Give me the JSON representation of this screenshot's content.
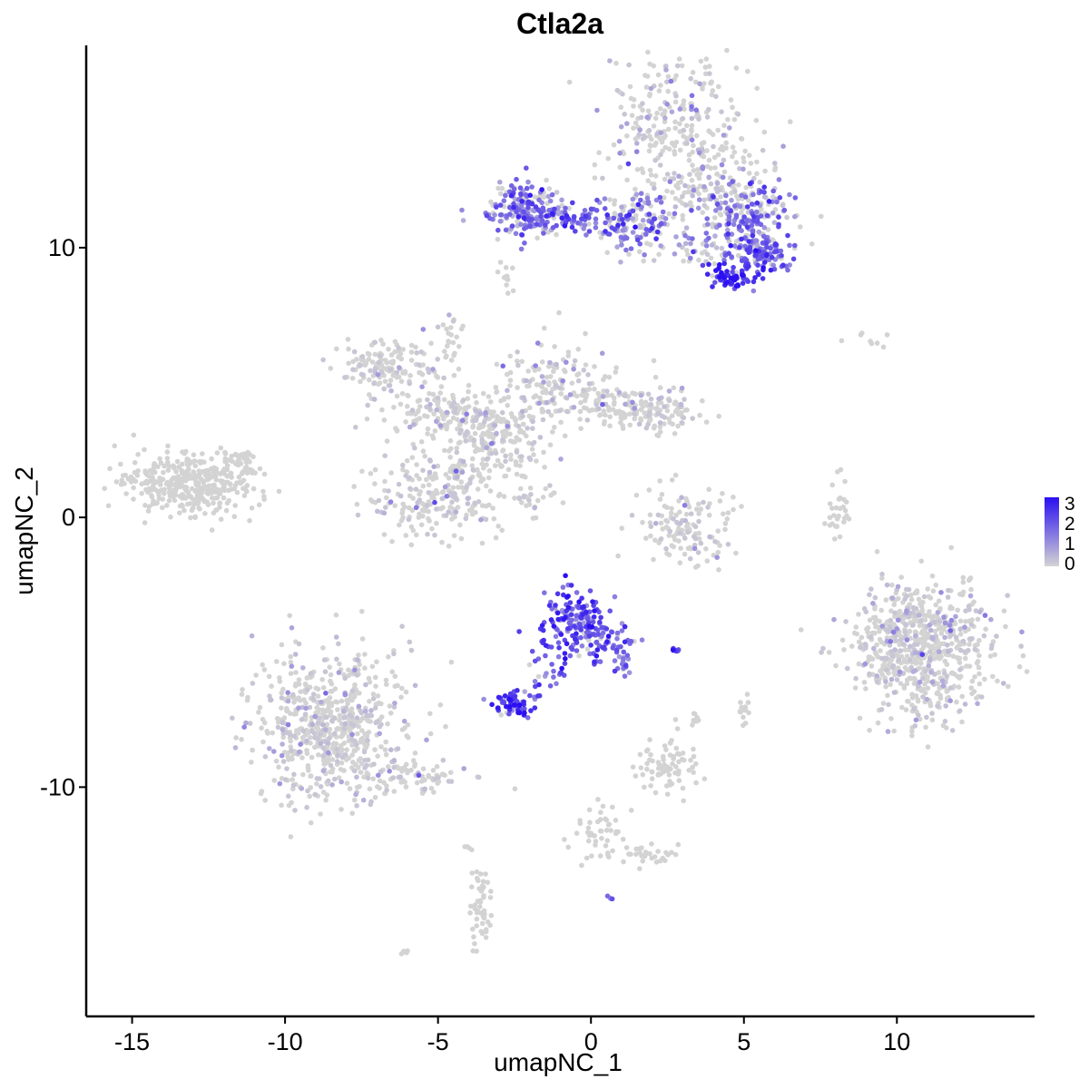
{
  "chart_data": {
    "type": "scatter",
    "title": "Ctla2a",
    "xlabel": "umapNC_1",
    "ylabel": "umapNC_2",
    "xlim": [
      -16.5,
      14.5
    ],
    "ylim": [
      -18.5,
      17.5
    ],
    "xticks": [
      -15,
      -10,
      -5,
      0,
      5,
      10
    ],
    "xtick_labels": [
      "-15",
      "-10",
      "-5",
      "0",
      "5",
      "10"
    ],
    "yticks": [
      -10,
      0,
      10
    ],
    "ytick_labels": [
      "-10",
      "0",
      "10"
    ],
    "grid": false,
    "legend": {
      "position": "right",
      "type": "colorbar",
      "labels": [
        "3",
        "2",
        "1",
        "0"
      ],
      "values": [
        3,
        2,
        1,
        0
      ],
      "low_color": "#d3d3d3",
      "high_color": "#2b0ff2"
    },
    "clusters": [
      {
        "cx": 2.8,
        "cy": 14.5,
        "sx": 1.1,
        "sy": 1.4,
        "n": 280,
        "expr": 0.15
      },
      {
        "cx": 4.0,
        "cy": 12.0,
        "sx": 1.2,
        "sy": 1.0,
        "n": 160,
        "expr": 0.55
      },
      {
        "cx": -2.2,
        "cy": 11.4,
        "sx": 0.6,
        "sy": 0.5,
        "n": 160,
        "expr": 1.4
      },
      {
        "cx": -0.5,
        "cy": 11.2,
        "sx": 1.3,
        "sy": 0.3,
        "n": 120,
        "expr": 1.7
      },
      {
        "cx": 1.5,
        "cy": 11.0,
        "sx": 0.7,
        "sy": 0.5,
        "n": 110,
        "expr": 1.2
      },
      {
        "cx": 5.2,
        "cy": 11.2,
        "sx": 0.7,
        "sy": 0.7,
        "n": 140,
        "expr": 1.5
      },
      {
        "cx": 5.5,
        "cy": 9.8,
        "sx": 0.5,
        "sy": 0.35,
        "n": 120,
        "expr": 1.8
      },
      {
        "cx": 4.6,
        "cy": 8.9,
        "sx": 0.35,
        "sy": 0.25,
        "n": 60,
        "expr": 2.4
      },
      {
        "cx": 3.5,
        "cy": 10.0,
        "sx": 1.0,
        "sy": 0.3,
        "n": 40,
        "expr": 0.8
      },
      {
        "cx": -2.9,
        "cy": 8.9,
        "sx": 0.15,
        "sy": 0.3,
        "n": 12,
        "expr": 0.0
      },
      {
        "cx": -4.6,
        "cy": 6.5,
        "sx": 0.2,
        "sy": 0.5,
        "n": 25,
        "expr": 0.02
      },
      {
        "cx": -6.8,
        "cy": 5.6,
        "sx": 0.8,
        "sy": 0.5,
        "n": 140,
        "expr": 0.02
      },
      {
        "cx": -4.5,
        "cy": 3.8,
        "sx": 1.1,
        "sy": 0.5,
        "n": 150,
        "expr": 0.02
      },
      {
        "cx": -3.2,
        "cy": 2.8,
        "sx": 0.9,
        "sy": 1.0,
        "n": 200,
        "expr": 0.02
      },
      {
        "cx": -1.2,
        "cy": 4.8,
        "sx": 1.0,
        "sy": 0.8,
        "n": 140,
        "expr": 0.04
      },
      {
        "cx": 0.9,
        "cy": 4.2,
        "sx": 0.7,
        "sy": 0.4,
        "n": 90,
        "expr": 0.04
      },
      {
        "cx": 2.3,
        "cy": 3.9,
        "sx": 0.7,
        "sy": 0.4,
        "n": 90,
        "expr": 0.02
      },
      {
        "cx": -5.0,
        "cy": 0.7,
        "sx": 1.2,
        "sy": 0.8,
        "n": 230,
        "expr": 0.02
      },
      {
        "cx": -13.2,
        "cy": 1.2,
        "sx": 1.1,
        "sy": 0.6,
        "n": 350,
        "expr": 0.0
      },
      {
        "cx": -11.5,
        "cy": 1.8,
        "sx": 0.4,
        "sy": 0.5,
        "n": 50,
        "expr": 0.0
      },
      {
        "cx": -1.8,
        "cy": 0.8,
        "sx": 0.6,
        "sy": 0.3,
        "n": 18,
        "expr": 0.05
      },
      {
        "cx": 3.1,
        "cy": -0.3,
        "sx": 0.8,
        "sy": 0.7,
        "n": 130,
        "expr": 0.02
      },
      {
        "cx": 8.1,
        "cy": 0.3,
        "sx": 0.2,
        "sy": 0.6,
        "n": 30,
        "expr": 0.0
      },
      {
        "cx": 10.8,
        "cy": -4.8,
        "sx": 1.1,
        "sy": 1.3,
        "n": 700,
        "expr": 0.02
      },
      {
        "cx": -0.5,
        "cy": -3.8,
        "sx": 0.5,
        "sy": 0.6,
        "n": 150,
        "expr": 2.0
      },
      {
        "cx": 0.5,
        "cy": -4.6,
        "sx": 0.4,
        "sy": 0.5,
        "n": 60,
        "expr": 1.7
      },
      {
        "cx": -1.4,
        "cy": -5.8,
        "sx": 0.3,
        "sy": 0.6,
        "n": 25,
        "expr": 1.9
      },
      {
        "cx": -2.5,
        "cy": -6.9,
        "sx": 0.35,
        "sy": 0.25,
        "n": 70,
        "expr": 2.2
      },
      {
        "cx": 1.1,
        "cy": -5.3,
        "sx": 0.15,
        "sy": 0.3,
        "n": 15,
        "expr": 1.4
      },
      {
        "cx": 2.7,
        "cy": -4.9,
        "sx": 0.15,
        "sy": 0.05,
        "n": 8,
        "expr": 2.0
      },
      {
        "cx": -8.5,
        "cy": -7.8,
        "sx": 1.2,
        "sy": 1.4,
        "n": 650,
        "expr": 0.02
      },
      {
        "cx": -5.8,
        "cy": -9.6,
        "sx": 1.0,
        "sy": 0.4,
        "n": 70,
        "expr": 0.01
      },
      {
        "cx": 2.5,
        "cy": -9.3,
        "sx": 0.5,
        "sy": 0.5,
        "n": 80,
        "expr": 0.0
      },
      {
        "cx": 0.3,
        "cy": -11.8,
        "sx": 0.5,
        "sy": 0.6,
        "n": 45,
        "expr": 0.0
      },
      {
        "cx": 2.0,
        "cy": -12.5,
        "sx": 0.5,
        "sy": 0.2,
        "n": 30,
        "expr": 0.0
      },
      {
        "cx": -3.6,
        "cy": -14.5,
        "sx": 0.2,
        "sy": 0.6,
        "n": 50,
        "expr": 0.0
      },
      {
        "cx": 5.0,
        "cy": -7.1,
        "sx": 0.12,
        "sy": 0.3,
        "n": 15,
        "expr": 0.0
      },
      {
        "cx": 3.4,
        "cy": -7.5,
        "sx": 0.1,
        "sy": 0.2,
        "n": 8,
        "expr": 0.0
      },
      {
        "cx": 9.0,
        "cy": 6.7,
        "sx": 0.5,
        "sy": 0.15,
        "n": 8,
        "expr": 0.0
      },
      {
        "cx": 0.6,
        "cy": -14.1,
        "sx": 0.07,
        "sy": 0.07,
        "n": 4,
        "expr": 1.8
      },
      {
        "cx": -6.1,
        "cy": -16.1,
        "sx": 0.08,
        "sy": 0.08,
        "n": 5,
        "expr": 0.0
      },
      {
        "cx": -4.0,
        "cy": -12.3,
        "sx": 0.1,
        "sy": 0.1,
        "n": 4,
        "expr": 0.0
      }
    ]
  }
}
